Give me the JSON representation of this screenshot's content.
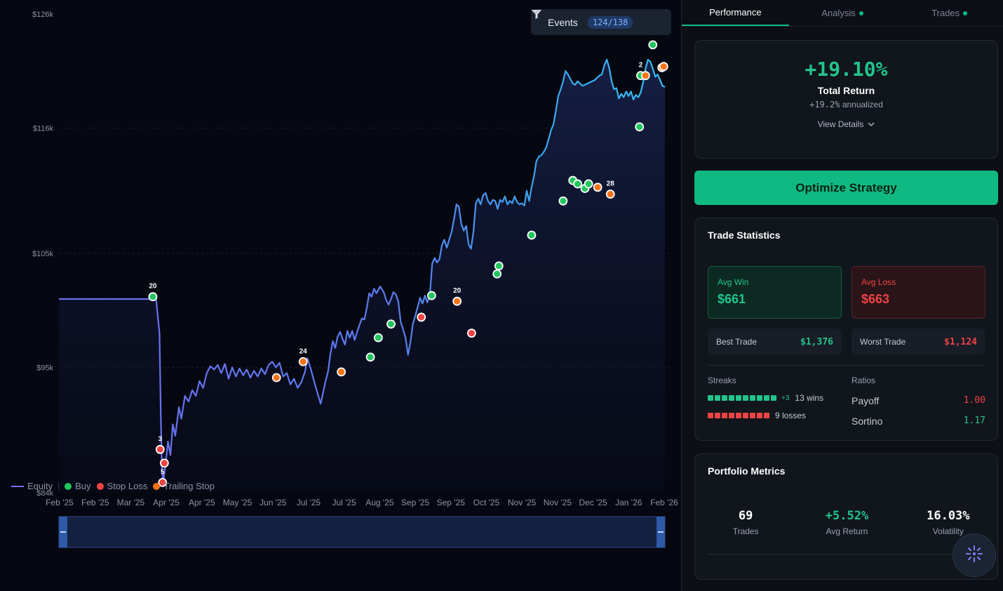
{
  "chart_data": {
    "type": "line",
    "series": [
      {
        "name": "Equity"
      }
    ],
    "y_ticks": [
      "$126k",
      "$116k",
      "$105k",
      "$95k",
      "$84k"
    ],
    "x_ticks": [
      "Feb '25",
      "Feb '25",
      "Mar '25",
      "Apr '25",
      "Apr '25",
      "May '25",
      "Jun '25",
      "Jul '25",
      "Jul '25",
      "Aug '25",
      "Sep '25",
      "Sep '25",
      "Oct '25",
      "Nov '25",
      "Nov '25",
      "Dec '25",
      "Jan '26",
      "Feb '26"
    ],
    "ylim": [
      84000,
      126000
    ],
    "equity": [
      [
        0,
        101000
      ],
      [
        0.155,
        101000
      ],
      [
        0.16,
        101200
      ],
      [
        0.166,
        98000
      ],
      [
        0.168,
        91000
      ],
      [
        0.17,
        86000
      ],
      [
        0.172,
        84900
      ],
      [
        0.176,
        86500
      ],
      [
        0.18,
        88500
      ],
      [
        0.184,
        87300
      ],
      [
        0.188,
        90000
      ],
      [
        0.192,
        89000
      ],
      [
        0.198,
        91500
      ],
      [
        0.202,
        90500
      ],
      [
        0.208,
        92500
      ],
      [
        0.214,
        92000
      ],
      [
        0.22,
        93000
      ],
      [
        0.226,
        92500
      ],
      [
        0.232,
        93800
      ],
      [
        0.238,
        93200
      ],
      [
        0.244,
        94500
      ],
      [
        0.25,
        95100
      ],
      [
        0.256,
        94800
      ],
      [
        0.262,
        95200
      ],
      [
        0.268,
        94500
      ],
      [
        0.274,
        95300
      ],
      [
        0.28,
        94000
      ],
      [
        0.286,
        95000
      ],
      [
        0.292,
        94200
      ],
      [
        0.298,
        94900
      ],
      [
        0.304,
        94300
      ],
      [
        0.31,
        94800
      ],
      [
        0.316,
        94100
      ],
      [
        0.322,
        94700
      ],
      [
        0.328,
        94200
      ],
      [
        0.334,
        94900
      ],
      [
        0.34,
        94400
      ],
      [
        0.346,
        95200
      ],
      [
        0.352,
        95500
      ],
      [
        0.358,
        95000
      ],
      [
        0.364,
        95400
      ],
      [
        0.37,
        94200
      ],
      [
        0.376,
        94500
      ],
      [
        0.382,
        93500
      ],
      [
        0.388,
        94000
      ],
      [
        0.394,
        93200
      ],
      [
        0.4,
        93700
      ],
      [
        0.406,
        94600
      ],
      [
        0.41,
        95800
      ],
      [
        0.416,
        94800
      ],
      [
        0.422,
        93600
      ],
      [
        0.428,
        92500
      ],
      [
        0.432,
        91800
      ],
      [
        0.436,
        92800
      ],
      [
        0.44,
        93800
      ],
      [
        0.444,
        94600
      ],
      [
        0.448,
        96200
      ],
      [
        0.452,
        97300
      ],
      [
        0.456,
        96700
      ],
      [
        0.46,
        97700
      ],
      [
        0.464,
        98100
      ],
      [
        0.468,
        97500
      ],
      [
        0.472,
        97000
      ],
      [
        0.476,
        98200
      ],
      [
        0.48,
        97600
      ],
      [
        0.484,
        98200
      ],
      [
        0.488,
        97400
      ],
      [
        0.492,
        98100
      ],
      [
        0.496,
        98700
      ],
      [
        0.5,
        99300
      ],
      [
        0.504,
        99200
      ],
      [
        0.508,
        100200
      ],
      [
        0.512,
        101500
      ],
      [
        0.516,
        101200
      ],
      [
        0.52,
        101900
      ],
      [
        0.524,
        101500
      ],
      [
        0.53,
        102100
      ],
      [
        0.536,
        101600
      ],
      [
        0.54,
        100900
      ],
      [
        0.544,
        100500
      ],
      [
        0.548,
        101000
      ],
      [
        0.552,
        101600
      ],
      [
        0.556,
        101400
      ],
      [
        0.56,
        100800
      ],
      [
        0.564,
        99000
      ],
      [
        0.568,
        98300
      ],
      [
        0.572,
        97600
      ],
      [
        0.576,
        96100
      ],
      [
        0.58,
        97200
      ],
      [
        0.584,
        98800
      ],
      [
        0.588,
        99500
      ],
      [
        0.592,
        100300
      ],
      [
        0.596,
        101100
      ],
      [
        0.6,
        100600
      ],
      [
        0.604,
        101300
      ],
      [
        0.608,
        100700
      ],
      [
        0.612,
        101300
      ],
      [
        0.616,
        104100
      ],
      [
        0.62,
        104600
      ],
      [
        0.624,
        104200
      ],
      [
        0.628,
        104500
      ],
      [
        0.632,
        105700
      ],
      [
        0.636,
        106200
      ],
      [
        0.64,
        105500
      ],
      [
        0.644,
        106200
      ],
      [
        0.648,
        106900
      ],
      [
        0.652,
        108000
      ],
      [
        0.656,
        109300
      ],
      [
        0.66,
        109100
      ],
      [
        0.664,
        107600
      ],
      [
        0.668,
        107000
      ],
      [
        0.672,
        107400
      ],
      [
        0.676,
        105800
      ],
      [
        0.68,
        105400
      ],
      [
        0.684,
        106900
      ],
      [
        0.688,
        109400
      ],
      [
        0.692,
        109800
      ],
      [
        0.696,
        109300
      ],
      [
        0.7,
        110100
      ],
      [
        0.704,
        110300
      ],
      [
        0.708,
        109600
      ],
      [
        0.712,
        109300
      ],
      [
        0.716,
        109700
      ],
      [
        0.72,
        109600
      ],
      [
        0.724,
        108900
      ],
      [
        0.728,
        109700
      ],
      [
        0.732,
        109500
      ],
      [
        0.736,
        110000
      ],
      [
        0.74,
        109300
      ],
      [
        0.744,
        109600
      ],
      [
        0.748,
        109400
      ],
      [
        0.752,
        110000
      ],
      [
        0.756,
        109500
      ],
      [
        0.76,
        109300
      ],
      [
        0.764,
        109400
      ],
      [
        0.768,
        109200
      ],
      [
        0.772,
        110500
      ],
      [
        0.776,
        109600
      ],
      [
        0.78,
        110800
      ],
      [
        0.784,
        111800
      ],
      [
        0.788,
        113100
      ],
      [
        0.792,
        113500
      ],
      [
        0.796,
        113600
      ],
      [
        0.8,
        113900
      ],
      [
        0.804,
        114300
      ],
      [
        0.808,
        115000
      ],
      [
        0.812,
        115800
      ],
      [
        0.816,
        116300
      ],
      [
        0.82,
        117500
      ],
      [
        0.824,
        118800
      ],
      [
        0.828,
        119400
      ],
      [
        0.832,
        120100
      ],
      [
        0.836,
        121000
      ],
      [
        0.84,
        120700
      ],
      [
        0.844,
        120300
      ],
      [
        0.848,
        119900
      ],
      [
        0.852,
        119800
      ],
      [
        0.856,
        120100
      ],
      [
        0.86,
        119900
      ],
      [
        0.864,
        119700
      ],
      [
        0.868,
        119800
      ],
      [
        0.872,
        119900
      ],
      [
        0.876,
        120000
      ],
      [
        0.88,
        120100
      ],
      [
        0.884,
        120200
      ],
      [
        0.888,
        120400
      ],
      [
        0.892,
        120600
      ],
      [
        0.896,
        120700
      ],
      [
        0.9,
        121500
      ],
      [
        0.904,
        122000
      ],
      [
        0.908,
        121300
      ],
      [
        0.912,
        120100
      ],
      [
        0.916,
        119400
      ],
      [
        0.92,
        119500
      ],
      [
        0.924,
        118600
      ],
      [
        0.928,
        119000
      ],
      [
        0.932,
        118700
      ],
      [
        0.936,
        119200
      ],
      [
        0.94,
        118800
      ],
      [
        0.944,
        119200
      ],
      [
        0.948,
        118500
      ],
      [
        0.952,
        118900
      ],
      [
        0.956,
        118700
      ],
      [
        0.96,
        119100
      ],
      [
        0.964,
        120000
      ],
      [
        0.968,
        121200
      ],
      [
        0.972,
        122000
      ],
      [
        0.976,
        121800
      ],
      [
        0.98,
        121200
      ],
      [
        0.984,
        120500
      ],
      [
        0.988,
        120700
      ],
      [
        0.992,
        120200
      ],
      [
        0.996,
        119700
      ],
      [
        1,
        119600
      ]
    ],
    "markers": [
      {
        "x": 0.155,
        "y": 101200,
        "type": "Buy",
        "count": "20"
      },
      {
        "x": 0.167,
        "y": 87800,
        "type": "Stop Loss",
        "count": "3"
      },
      {
        "x": 0.174,
        "y": 86600,
        "type": "Stop Loss"
      },
      {
        "x": 0.171,
        "y": 84900,
        "type": "Stop Loss",
        "count": "5"
      },
      {
        "x": 0.359,
        "y": 94100,
        "type": "Trailing Stop"
      },
      {
        "x": 0.403,
        "y": 95500,
        "type": "Trailing Stop",
        "count": "24"
      },
      {
        "x": 0.466,
        "y": 94600,
        "type": "Trailing Stop"
      },
      {
        "x": 0.514,
        "y": 95900,
        "type": "Buy"
      },
      {
        "x": 0.527,
        "y": 97600,
        "type": "Buy"
      },
      {
        "x": 0.548,
        "y": 98800,
        "type": "Buy"
      },
      {
        "x": 0.598,
        "y": 99400,
        "type": "Stop Loss"
      },
      {
        "x": 0.615,
        "y": 101300,
        "type": "Buy"
      },
      {
        "x": 0.657,
        "y": 100800,
        "type": "Trailing Stop",
        "count": "20"
      },
      {
        "x": 0.681,
        "y": 98000,
        "type": "Stop Loss"
      },
      {
        "x": 0.723,
        "y": 103200,
        "type": "Buy"
      },
      {
        "x": 0.726,
        "y": 103900,
        "type": "Buy"
      },
      {
        "x": 0.78,
        "y": 106600,
        "type": "Buy"
      },
      {
        "x": 0.832,
        "y": 109600,
        "type": "Buy"
      },
      {
        "x": 0.848,
        "y": 111400,
        "type": "Buy"
      },
      {
        "x": 0.856,
        "y": 111100,
        "type": "Buy"
      },
      {
        "x": 0.868,
        "y": 110700,
        "type": "Buy"
      },
      {
        "x": 0.874,
        "y": 111100,
        "type": "Buy"
      },
      {
        "x": 0.889,
        "y": 110800,
        "type": "Trailing Stop"
      },
      {
        "x": 0.91,
        "y": 110200,
        "type": "Trailing Stop",
        "count": "28"
      },
      {
        "x": 0.958,
        "y": 116100,
        "type": "Buy"
      },
      {
        "x": 0.96,
        "y": 120600,
        "type": "Buy",
        "count": "2"
      },
      {
        "x": 0.968,
        "y": 120600,
        "type": "Trailing Stop"
      },
      {
        "x": 0.98,
        "y": 123300,
        "type": "Buy"
      },
      {
        "x": 0.995,
        "y": 121300,
        "type": "Trailing Stop"
      },
      {
        "x": 0.998,
        "y": 121400,
        "type": "Trailing Stop"
      }
    ]
  },
  "events": {
    "label": "Events",
    "count": "124/138"
  },
  "legend": [
    {
      "label": "Equity",
      "color": "#7b6cf6",
      "kind": "line"
    },
    {
      "label": "Buy",
      "color": "#22c55e",
      "kind": "dot"
    },
    {
      "label": "Stop Loss",
      "color": "#ef4444",
      "kind": "dot"
    },
    {
      "label": "Trailing Stop",
      "color": "#f97316",
      "kind": "dot"
    }
  ],
  "tabs": [
    {
      "label": "Performance",
      "active": true
    },
    {
      "label": "Analysis",
      "dot": true
    },
    {
      "label": "Trades",
      "dot": true
    }
  ],
  "performance": {
    "total_return": "+19.10%",
    "total_return_label": "Total Return",
    "annualized_value": "+19.2%",
    "annualized_label": "annualized",
    "view_details": "View Details"
  },
  "optimize_label": "Optimize Strategy",
  "trade_stats": {
    "title": "Trade Statistics",
    "avg_win_label": "Avg Win",
    "avg_win": "$661",
    "avg_loss_label": "Avg Loss",
    "avg_loss": "$663",
    "best_trade_label": "Best Trade",
    "best_trade": "$1,376",
    "worst_trade_label": "Worst Trade",
    "worst_trade": "$1,124",
    "streaks_label": "Streaks",
    "win_extra": "+3",
    "win_text": "13 wins",
    "loss_text": "9 losses",
    "ratios_label": "Ratios",
    "payoff_label": "Payoff",
    "payoff": "1.00",
    "sortino_label": "Sortino",
    "sortino": "1.17"
  },
  "portfolio": {
    "title": "Portfolio Metrics",
    "metrics": [
      {
        "value": "69",
        "label": "Trades",
        "color": "#ffffff"
      },
      {
        "value": "+5.52%",
        "label": "Avg Return",
        "color": "#22c58b"
      },
      {
        "value": "16.03%",
        "label": "Volatility",
        "color": "#ffffff"
      }
    ]
  },
  "colors": {
    "buy": "#22c55e",
    "stop_loss": "#ef4444",
    "trailing_stop": "#f97316",
    "signal": "#22d3ee",
    "accent": "#10b981"
  }
}
